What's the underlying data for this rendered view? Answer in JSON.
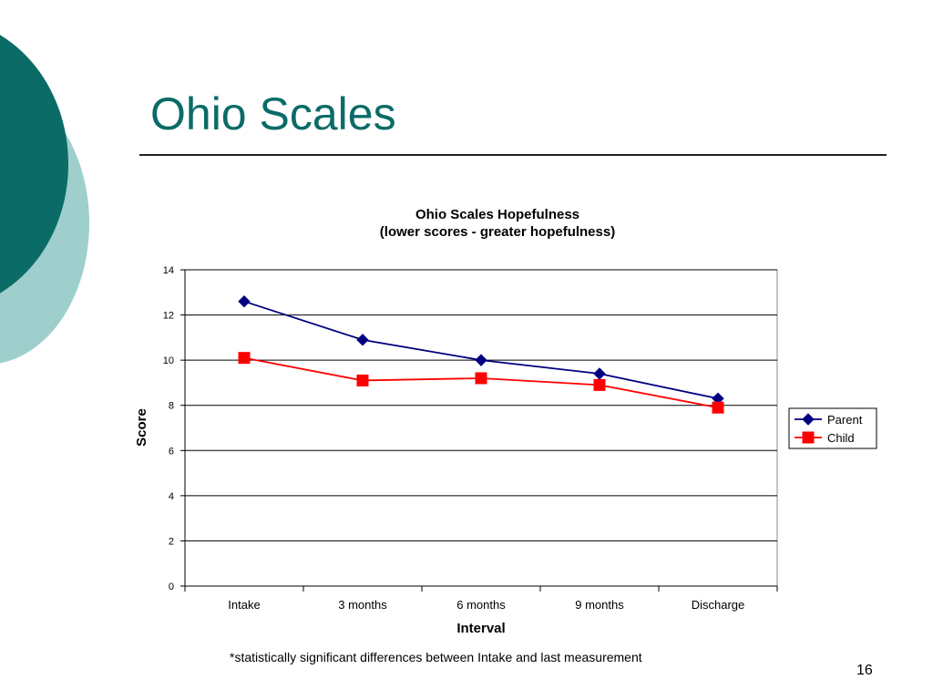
{
  "slide": {
    "title": "Ohio Scales",
    "footnote": "*statistically significant differences between Intake and last measurement",
    "page_number": "16"
  },
  "colors": {
    "accent_dark": "#0b6b67",
    "accent_light": "#9ecfcd",
    "parent_series": "#000080",
    "child_series": "#ff0000"
  },
  "chart_data": {
    "type": "line",
    "title": "Ohio Scales Hopefulness",
    "subtitle": "(lower scores - greater hopefulness)",
    "xlabel": "Interval",
    "ylabel": "Score",
    "categories": [
      "Intake",
      "3 months",
      "6 months",
      "9 months",
      "Discharge"
    ],
    "ylim": [
      0,
      14
    ],
    "yticks": [
      0,
      2,
      4,
      6,
      8,
      10,
      12,
      14
    ],
    "grid": true,
    "legend_position": "right",
    "series": [
      {
        "name": "Parent",
        "values": [
          12.6,
          10.9,
          10.0,
          9.4,
          8.3
        ],
        "color": "#000080",
        "marker": "diamond"
      },
      {
        "name": "Child",
        "values": [
          10.1,
          9.1,
          9.2,
          8.9,
          7.9
        ],
        "color": "#ff0000",
        "marker": "square"
      }
    ]
  }
}
